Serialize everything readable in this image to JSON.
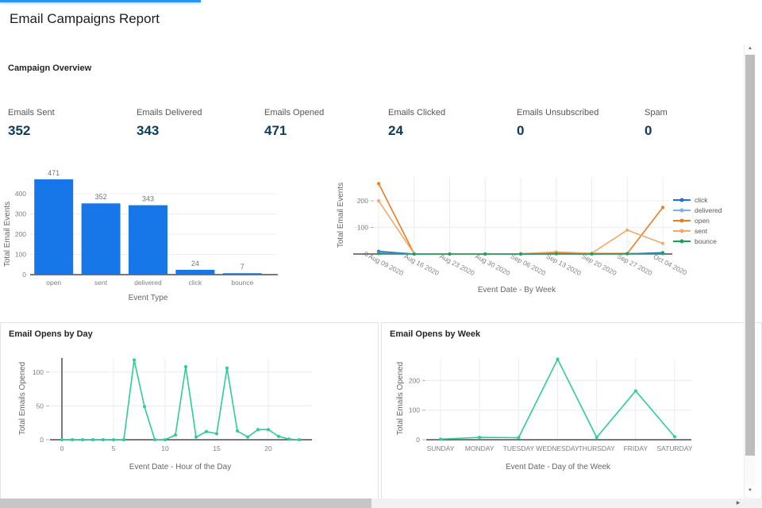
{
  "page": {
    "title": "Email Campaigns Report",
    "section_title": "Campaign Overview",
    "accent_color": "#2a93f5"
  },
  "kpis": [
    {
      "label": "Emails Sent",
      "value": "352"
    },
    {
      "label": "Emails Delivered",
      "value": "343"
    },
    {
      "label": "Emails Opened",
      "value": "471"
    },
    {
      "label": "Emails Clicked",
      "value": "24"
    },
    {
      "label": "Emails Unsubscribed",
      "value": "0"
    },
    {
      "label": "Spam",
      "value": "0"
    }
  ],
  "chart_data": [
    {
      "id": "events-by-type",
      "type": "bar",
      "categories": [
        "open",
        "sent",
        "delivered",
        "click",
        "bounce"
      ],
      "values": [
        471,
        352,
        343,
        24,
        7
      ],
      "data_labels": [
        "471",
        "352",
        "343",
        "24",
        "7"
      ],
      "xlabel": "Event Type",
      "ylabel": "Total Email Events",
      "yticks": [
        0,
        100,
        200,
        300,
        400
      ],
      "ylim": [
        0,
        500
      ],
      "bar_color": "#1877e8",
      "grid": true
    },
    {
      "id": "events-by-week",
      "type": "line",
      "categories": [
        "Aug 09 2020",
        "Aug 16 2020",
        "Aug 23 2020",
        "Aug 30 2020",
        "Sep 06 2020",
        "Sep 13 2020",
        "Sep 20 2020",
        "Sep 27 2020",
        "Oct 04 2020"
      ],
      "series": [
        {
          "name": "click",
          "color": "#1f6fe0",
          "values": [
            10,
            0,
            0,
            0,
            0,
            1,
            1,
            1,
            5
          ]
        },
        {
          "name": "delivered",
          "color": "#7cb1f0",
          "values": [
            4,
            0,
            0,
            0,
            0,
            2,
            1,
            2,
            2
          ]
        },
        {
          "name": "open",
          "color": "#ee7b1e",
          "values": [
            265,
            1,
            0,
            0,
            1,
            5,
            2,
            2,
            175
          ]
        },
        {
          "name": "sent",
          "color": "#f3a968",
          "values": [
            200,
            1,
            0,
            0,
            1,
            8,
            3,
            90,
            40
          ]
        },
        {
          "name": "bounce",
          "color": "#14a45c",
          "values": [
            2,
            0,
            0,
            0,
            0,
            1,
            0,
            1,
            2
          ]
        }
      ],
      "xlabel": "Event Date - By Week",
      "ylabel": "Total Email Events",
      "yticks": [
        0,
        100,
        200
      ],
      "ylim": [
        0,
        280
      ],
      "legend_position": "right",
      "grid": true
    },
    {
      "id": "opens-by-hour",
      "type": "line",
      "title": "Email Opens by Day",
      "x": [
        0,
        1,
        2,
        3,
        4,
        5,
        6,
        7,
        8,
        9,
        10,
        11,
        12,
        13,
        14,
        15,
        16,
        17,
        18,
        19,
        20,
        21,
        22,
        23
      ],
      "series": [
        {
          "name": "opens",
          "color": "#2bce93",
          "values": [
            0,
            0,
            0,
            0,
            0,
            0,
            0,
            118,
            49,
            0,
            0,
            7,
            108,
            4,
            12,
            9,
            106,
            13,
            4,
            15,
            15,
            5,
            1,
            0
          ]
        }
      ],
      "xticks": [
        0,
        5,
        10,
        15,
        20
      ],
      "xlabel": "Event Date - Hour of the Day",
      "ylabel": "Total Emails Opened",
      "yticks": [
        0,
        50,
        100
      ],
      "ylim": [
        0,
        130
      ],
      "grid": true
    },
    {
      "id": "opens-by-weekday",
      "type": "line",
      "title": "Email Opens by Week",
      "categories": [
        "SUNDAY",
        "MONDAY",
        "TUESDAY",
        "WEDNESDAY",
        "THURSDAY",
        "FRIDAY",
        "SATURDAY"
      ],
      "series": [
        {
          "name": "opens",
          "color": "#2bce93",
          "values": [
            2,
            8,
            7,
            272,
            8,
            165,
            10
          ]
        }
      ],
      "xlabel": "Event Date - Day of the Week",
      "ylabel": "Total Emails Opened",
      "yticks": [
        0,
        100,
        200
      ],
      "ylim": [
        0,
        290
      ],
      "grid": true
    }
  ],
  "scrollbar": {
    "up_icon": "▲",
    "down_icon": "▼",
    "right_icon": "▶"
  }
}
